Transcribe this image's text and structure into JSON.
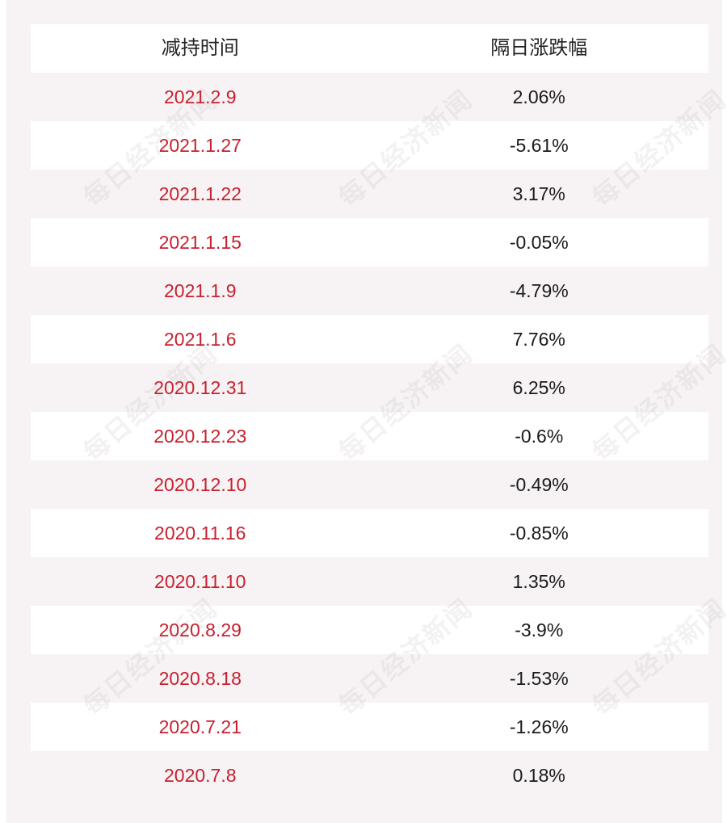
{
  "header": {
    "col1": "减持时间",
    "col2": "隔日涨跌幅"
  },
  "watermark": "每日经济新闻",
  "rows": [
    {
      "date": "2021.2.9",
      "change": "2.06%"
    },
    {
      "date": "2021.1.27",
      "change": "-5.61%"
    },
    {
      "date": "2021.1.22",
      "change": "3.17%"
    },
    {
      "date": "2021.1.15",
      "change": "-0.05%"
    },
    {
      "date": "2021.1.9",
      "change": "-4.79%"
    },
    {
      "date": "2021.1.6",
      "change": "7.76%"
    },
    {
      "date": "2020.12.31",
      "change": "6.25%"
    },
    {
      "date": "2020.12.23",
      "change": "-0.6%"
    },
    {
      "date": "2020.12.10",
      "change": "-0.49%"
    },
    {
      "date": "2020.11.16",
      "change": "-0.85%"
    },
    {
      "date": "2020.11.10",
      "change": "1.35%"
    },
    {
      "date": "2020.8.29",
      "change": "-3.9%"
    },
    {
      "date": "2020.8.18",
      "change": "-1.53%"
    },
    {
      "date": "2020.7.21",
      "change": "-1.26%"
    },
    {
      "date": "2020.7.8",
      "change": "0.18%"
    }
  ],
  "colors": {
    "date_text": "#c8202f",
    "value_text": "#1a1a1a",
    "panel_bg": "#f7f3f4",
    "stripe_bg": "#ffffff"
  }
}
